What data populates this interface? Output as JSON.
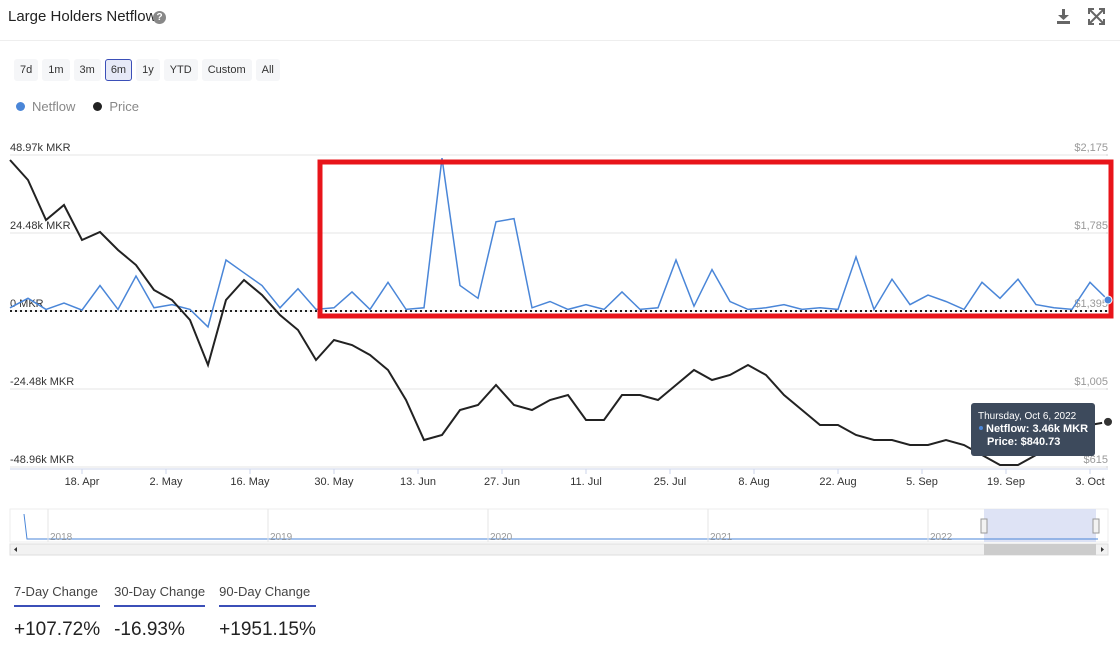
{
  "header": {
    "title": "Large Holders Netflow"
  },
  "ranges": [
    "7d",
    "1m",
    "3m",
    "6m",
    "1y",
    "YTD",
    "Custom",
    "All"
  ],
  "active_range": "6m",
  "chart_data": {
    "type": "line",
    "x": [
      "2022-04-06",
      "2022-04-09",
      "2022-04-12",
      "2022-04-15",
      "2022-04-18",
      "2022-04-21",
      "2022-04-24",
      "2022-04-27",
      "2022-04-30",
      "2022-05-03",
      "2022-05-06",
      "2022-05-09",
      "2022-05-12",
      "2022-05-15",
      "2022-05-18",
      "2022-05-21",
      "2022-05-24",
      "2022-05-27",
      "2022-05-30",
      "2022-06-02",
      "2022-06-05",
      "2022-06-08",
      "2022-06-11",
      "2022-06-14",
      "2022-06-17",
      "2022-06-20",
      "2022-06-23",
      "2022-06-26",
      "2022-06-29",
      "2022-07-02",
      "2022-07-05",
      "2022-07-08",
      "2022-07-11",
      "2022-07-14",
      "2022-07-17",
      "2022-07-20",
      "2022-07-23",
      "2022-07-26",
      "2022-07-29",
      "2022-08-01",
      "2022-08-04",
      "2022-08-07",
      "2022-08-10",
      "2022-08-13",
      "2022-08-16",
      "2022-08-19",
      "2022-08-22",
      "2022-08-25",
      "2022-08-28",
      "2022-08-31",
      "2022-09-03",
      "2022-09-06",
      "2022-09-09",
      "2022-09-12",
      "2022-09-15",
      "2022-09-18",
      "2022-09-21",
      "2022-09-24",
      "2022-09-27",
      "2022-09-30",
      "2022-10-03",
      "2022-10-06"
    ],
    "xlim": [
      "2022-04-06",
      "2022-10-06"
    ],
    "xticks": [
      {
        "value": "2022-04-18",
        "label": "18. Apr"
      },
      {
        "value": "2022-05-02",
        "label": "2. May"
      },
      {
        "value": "2022-05-16",
        "label": "16. May"
      },
      {
        "value": "2022-05-30",
        "label": "30. May"
      },
      {
        "value": "2022-06-13",
        "label": "13. Jun"
      },
      {
        "value": "2022-06-27",
        "label": "27. Jun"
      },
      {
        "value": "2022-07-11",
        "label": "11. Jul"
      },
      {
        "value": "2022-07-25",
        "label": "25. Jul"
      },
      {
        "value": "2022-08-08",
        "label": "8. Aug"
      },
      {
        "value": "2022-08-22",
        "label": "22. Aug"
      },
      {
        "value": "2022-09-05",
        "label": "5. Sep"
      },
      {
        "value": "2022-09-19",
        "label": "19. Sep"
      },
      {
        "value": "2022-10-03",
        "label": "3. Oct"
      }
    ],
    "ylim": [
      -48960,
      48970
    ],
    "yticks": [
      {
        "value": 48970,
        "label": "48.97k MKR"
      },
      {
        "value": 24480,
        "label": "24.48k MKR"
      },
      {
        "value": 0,
        "label": "0 MKR"
      },
      {
        "value": -24480,
        "label": "-24.48k MKR"
      },
      {
        "value": -48960,
        "label": "-48.96k MKR"
      }
    ],
    "y2lim": [
      615,
      2175
    ],
    "y2ticks": [
      {
        "value": 2175,
        "label": "$2,175"
      },
      {
        "value": 1785,
        "label": "$1,785"
      },
      {
        "value": 1395,
        "label": "$1,395"
      },
      {
        "value": 1005,
        "label": "$1,005"
      },
      {
        "value": 615,
        "label": "$615"
      }
    ],
    "grid": true,
    "series": [
      {
        "name": "Netflow",
        "color": "#4a86d8",
        "values": [
          1000,
          4000,
          500,
          2500,
          300,
          8000,
          500,
          11000,
          1000,
          2000,
          500,
          -5000,
          16000,
          12000,
          8000,
          1000,
          7000,
          500,
          1000,
          6000,
          500,
          9000,
          500,
          1000,
          48000,
          8000,
          4000,
          28000,
          29000,
          1000,
          3000,
          500,
          2000,
          500,
          6000,
          500,
          1000,
          16000,
          1500,
          13000,
          3000,
          500,
          1000,
          2000,
          500,
          1000,
          500,
          17000,
          500,
          10000,
          2000,
          5000,
          3000,
          500,
          9000,
          4000,
          10000,
          2000,
          1000,
          500,
          9000,
          3460
        ]
      },
      {
        "name": "Price",
        "color": "#222222",
        "axis": "y2",
        "values": [
          2150,
          2050,
          1850,
          1925,
          1750,
          1790,
          1700,
          1625,
          1500,
          1450,
          1350,
          1125,
          1450,
          1550,
          1475,
          1375,
          1300,
          1150,
          1250,
          1225,
          1175,
          1100,
          950,
          750,
          775,
          900,
          925,
          1025,
          925,
          900,
          950,
          975,
          850,
          850,
          975,
          975,
          950,
          1025,
          1100,
          1050,
          1075,
          1125,
          1075,
          975,
          900,
          825,
          825,
          775,
          750,
          750,
          725,
          725,
          750,
          725,
          675,
          625,
          625,
          675,
          750,
          800,
          825,
          840.73
        ]
      }
    ],
    "tooltip": {
      "date": "Thursday, Oct 6, 2022",
      "netflow": "Netflow: 3.46k MKR",
      "price": "Price: $840.73"
    }
  },
  "navigator": {
    "years": [
      "2018",
      "2019",
      "2020",
      "2021",
      "2022"
    ]
  },
  "changes": [
    {
      "label": "7-Day Change",
      "value": "+107.72%"
    },
    {
      "label": "30-Day Change",
      "value": "-16.93%"
    },
    {
      "label": "90-Day Change",
      "value": "+1951.15%"
    }
  ]
}
